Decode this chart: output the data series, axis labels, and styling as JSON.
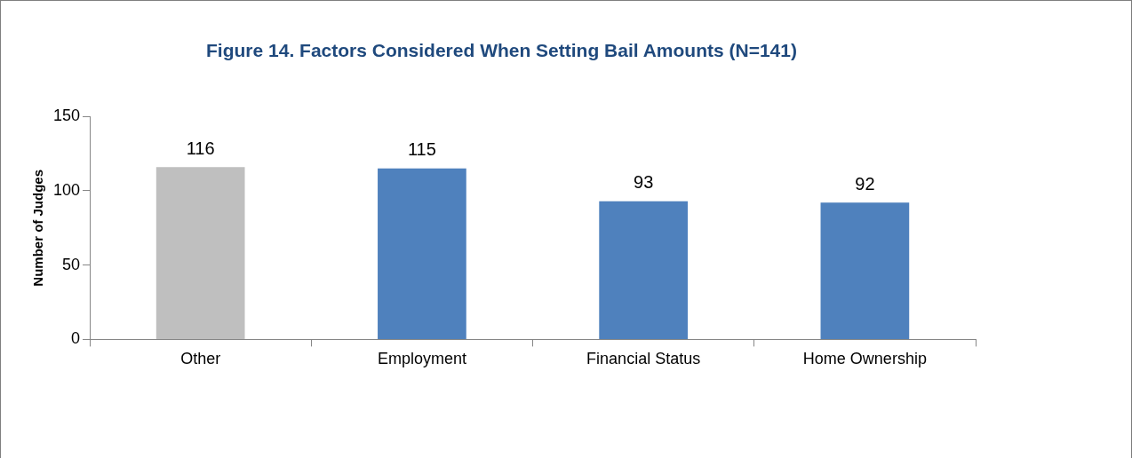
{
  "chart_data": {
    "type": "bar",
    "title": "Figure 14. Factors Considered When Setting Bail Amounts (N=141)",
    "ylabel": "Number of Judges",
    "categories": [
      "Other",
      "Employment",
      "Financial Status",
      "Home Ownership"
    ],
    "values": [
      116,
      115,
      93,
      92
    ],
    "colors": [
      "#bfbfbf",
      "#4f81bd",
      "#4f81bd",
      "#4f81bd"
    ],
    "ylim": [
      0,
      150
    ],
    "yticks": [
      0,
      50,
      100,
      150
    ],
    "data_labels": true
  }
}
